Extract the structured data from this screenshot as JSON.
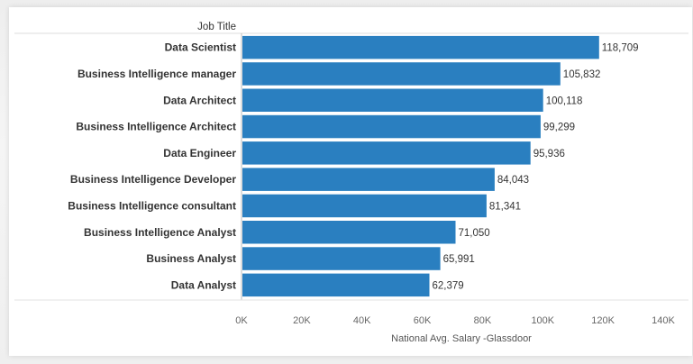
{
  "chart_data": {
    "type": "bar",
    "orientation": "horizontal",
    "category_header": "Job Title",
    "categories": [
      "Data Scientist",
      "Business Intelligence manager",
      "Data Architect",
      "Business Intelligence Architect",
      "Data Engineer",
      "Business Intelligence Developer",
      "Business Intelligence consultant",
      "Business Intelligence Analyst",
      "Business Analyst",
      "Data Analyst"
    ],
    "values": [
      118709,
      105832,
      100118,
      99299,
      95936,
      84043,
      81341,
      71050,
      65991,
      62379
    ],
    "value_labels": [
      "118,709",
      "105,832",
      "100,118",
      "99,299",
      "95,936",
      "84,043",
      "81,341",
      "71,050",
      "65,991",
      "62,379"
    ],
    "xlabel": "National Avg. Salary -Glassdoor",
    "xlim": [
      0,
      140000
    ],
    "xticks": [
      0,
      20000,
      40000,
      60000,
      80000,
      100000,
      120000,
      140000
    ],
    "xtick_labels": [
      "0K",
      "20K",
      "40K",
      "60K",
      "80K",
      "100K",
      "120K",
      "140K"
    ],
    "bar_color": "#2a7fc0",
    "grid": false
  }
}
